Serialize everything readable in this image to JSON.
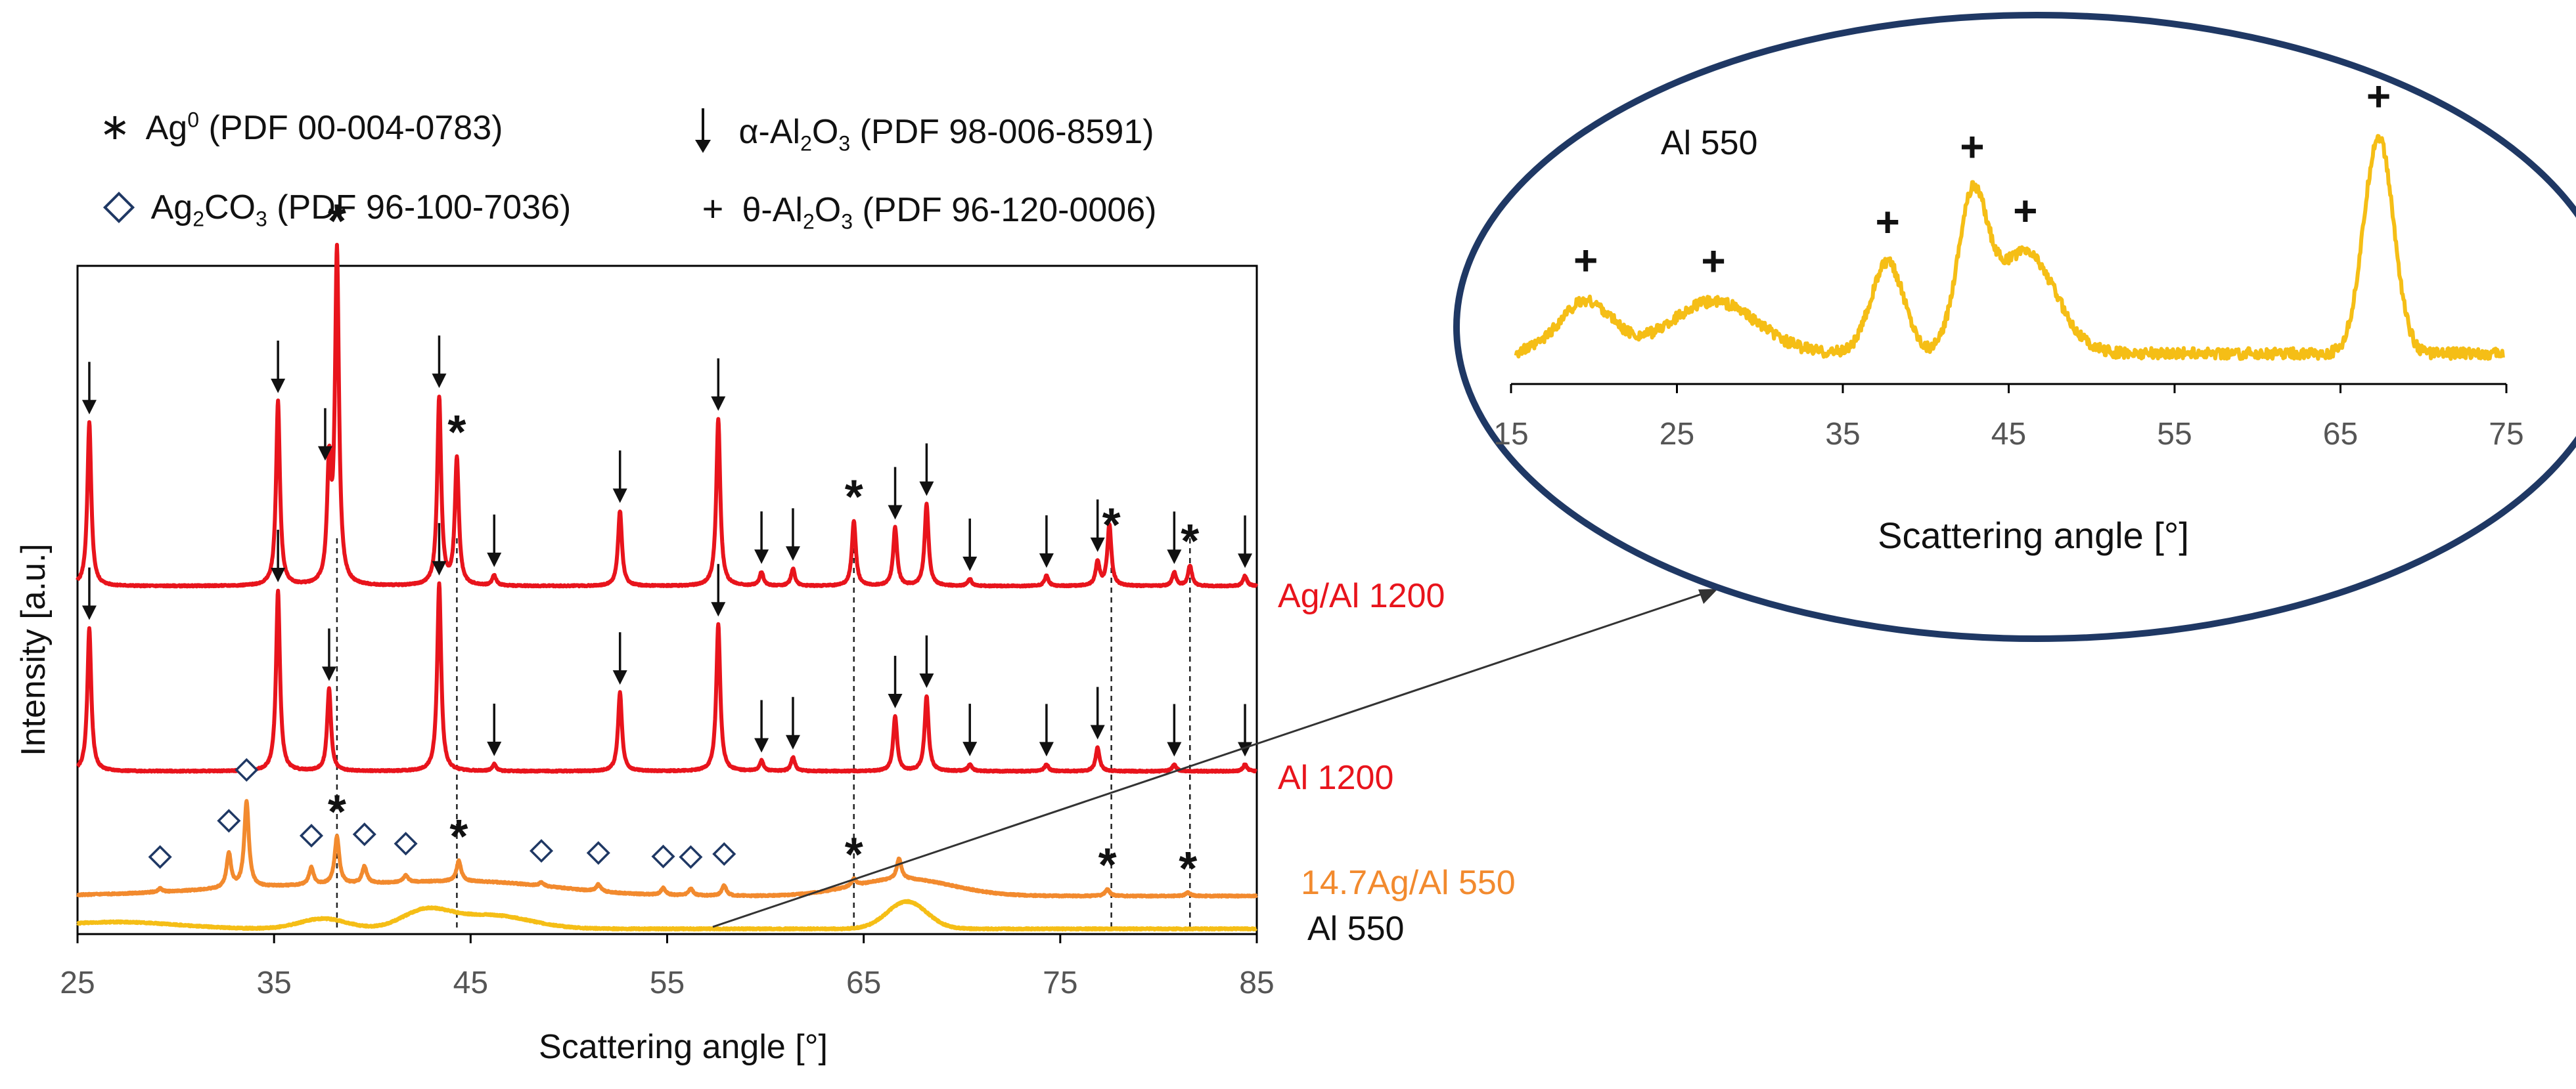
{
  "legend": {
    "ag0": {
      "prefix": "Ag",
      "sup": "0",
      "ref": "(PDF 00-004-0783)"
    },
    "ag2co3": {
      "a": "Ag",
      "s1": "2",
      "b": "CO",
      "s2": "3",
      "ref": "(PDF 96-100-7036)"
    },
    "alpha": {
      "a": "α-Al",
      "s1": "2",
      "b": "O",
      "s2": "3",
      "ref": "(PDF 98-006-8591)"
    },
    "theta": {
      "a": "θ-Al",
      "s1": "2",
      "b": "O",
      "s2": "3",
      "ref": "(PDF 96-120-0006)"
    }
  },
  "colors": {
    "ag_al_1200": "#e8141c",
    "al_1200": "#e8141c",
    "ag_al_550": "#f28a2e",
    "al_550": "#f5be16",
    "frame": "#000000",
    "oval": "#1f3864",
    "diamond": "#1f3864"
  },
  "chart_data": [
    {
      "type": "line",
      "title": "",
      "xlabel": "Scattering angle [°]",
      "ylabel": "Intensity [a.u.]",
      "xlim": [
        25,
        85
      ],
      "xticks": [
        "25",
        "35",
        "45",
        "55",
        "65",
        "75",
        "85"
      ],
      "grid": false,
      "series": [
        {
          "name": "Ag/Al 1200",
          "label": "Ag/Al 1200",
          "color": "#e8141c",
          "baseline": 0.4,
          "peaks": [
            [
              25.6,
              0.48
            ],
            [
              35.2,
              0.54
            ],
            [
              37.8,
              0.33
            ],
            [
              38.2,
              0.97
            ],
            [
              43.4,
              0.55
            ],
            [
              44.3,
              0.37
            ],
            [
              46.2,
              0.03
            ],
            [
              52.6,
              0.22
            ],
            [
              57.6,
              0.49
            ],
            [
              59.8,
              0.04
            ],
            [
              61.4,
              0.05
            ],
            [
              64.5,
              0.19
            ],
            [
              66.6,
              0.17
            ],
            [
              68.2,
              0.24
            ],
            [
              70.4,
              0.02
            ],
            [
              74.3,
              0.03
            ],
            [
              76.9,
              0.07
            ],
            [
              77.5,
              0.18
            ],
            [
              80.8,
              0.04
            ],
            [
              81.6,
              0.06
            ],
            [
              84.4,
              0.03
            ]
          ]
        },
        {
          "name": "Al 1200",
          "label": "Al 1200",
          "color": "#e8141c",
          "baseline": 0.0,
          "peaks": [
            [
              25.6,
              0.42
            ],
            [
              35.2,
              0.53
            ],
            [
              37.8,
              0.24
            ],
            [
              43.4,
              0.55
            ],
            [
              46.2,
              0.02
            ],
            [
              52.6,
              0.23
            ],
            [
              57.6,
              0.43
            ],
            [
              59.8,
              0.03
            ],
            [
              61.4,
              0.04
            ],
            [
              66.6,
              0.16
            ],
            [
              68.2,
              0.22
            ],
            [
              70.4,
              0.02
            ],
            [
              74.3,
              0.02
            ],
            [
              76.9,
              0.07
            ],
            [
              80.8,
              0.02
            ],
            [
              84.4,
              0.02
            ]
          ]
        },
        {
          "name": "14.7Ag/Al 550",
          "label": "14.7Ag/Al 550",
          "color": "#f28a2e",
          "baseline": 0.0,
          "peaks": [
            [
              29.2,
              0.01
            ],
            [
              32.7,
              0.1
            ],
            [
              33.6,
              0.25
            ],
            [
              36.9,
              0.05
            ],
            [
              38.2,
              0.14
            ],
            [
              39.6,
              0.05
            ],
            [
              41.7,
              0.02
            ],
            [
              44.4,
              0.06
            ],
            [
              48.6,
              0.01
            ],
            [
              51.5,
              0.02
            ],
            [
              54.8,
              0.02
            ],
            [
              56.2,
              0.02
            ],
            [
              57.9,
              0.03
            ],
            [
              64.5,
              0.02
            ],
            [
              66.8,
              0.06
            ],
            [
              77.4,
              0.02
            ],
            [
              81.5,
              0.01
            ]
          ],
          "humps": [
            [
              37.5,
              6,
              0.03
            ],
            [
              46,
              4,
              0.03
            ],
            [
              67,
              2.5,
              0.05
            ]
          ]
        },
        {
          "name": "Al 550",
          "label": "Al 550",
          "color": "#f5be16",
          "baseline": 0.0,
          "humps": [
            [
              19.5,
              2,
              0.02
            ],
            [
              27,
              3,
              0.02
            ],
            [
              37.5,
              1.2,
              0.03
            ],
            [
              42.7,
              1.2,
              0.05
            ],
            [
              46,
              2,
              0.04
            ],
            [
              67.2,
              1.0,
              0.08
            ]
          ]
        }
      ],
      "annotations": {
        "star": [
          [
            38.2,
            "Ag/Al 1200"
          ],
          [
            44.3,
            "Ag/Al 1200"
          ],
          [
            64.5,
            "Ag/Al 1200"
          ],
          [
            77.6,
            "Ag/Al 1200"
          ],
          [
            81.6,
            "Ag/Al 1200"
          ],
          [
            38.2,
            "14.7Ag/Al 550"
          ],
          [
            44.4,
            "14.7Ag/Al 550"
          ],
          [
            64.5,
            "14.7Ag/Al 550"
          ],
          [
            77.4,
            "14.7Ag/Al 550"
          ],
          [
            81.5,
            "14.7Ag/Al 550"
          ]
        ],
        "arrow": [
          25.6,
          35.2,
          37.8,
          43.4,
          46.2,
          52.6,
          57.6,
          59.8,
          61.4,
          66.6,
          68.2,
          70.4,
          74.3,
          76.9,
          80.8,
          84.4
        ],
        "diamond": [
          29.2,
          32.7,
          33.6,
          36.9,
          39.6,
          41.7,
          48.6,
          51.5,
          54.8,
          56.2,
          57.9
        ],
        "dashed_lines": [
          38.2,
          44.3,
          64.5,
          77.6,
          81.6
        ]
      }
    },
    {
      "type": "line",
      "title": "Al 550",
      "xlabel": "Scattering angle [°]",
      "xlim": [
        15,
        75
      ],
      "xticks": [
        "15",
        "25",
        "35",
        "45",
        "55",
        "65",
        "75"
      ],
      "series": [
        {
          "name": "Al 550",
          "color": "#f5be16",
          "humps": [
            [
              19.5,
              1.6,
              0.24
            ],
            [
              27.2,
              2.6,
              0.24
            ],
            [
              37.7,
              1.0,
              0.42
            ],
            [
              42.8,
              0.9,
              0.67
            ],
            [
              46.0,
              1.8,
              0.47
            ],
            [
              67.3,
              0.9,
              1.0
            ]
          ]
        }
      ],
      "annotations": {
        "plus": [
          19.5,
          27.2,
          37.7,
          42.8,
          46.0,
          67.3
        ]
      }
    }
  ]
}
